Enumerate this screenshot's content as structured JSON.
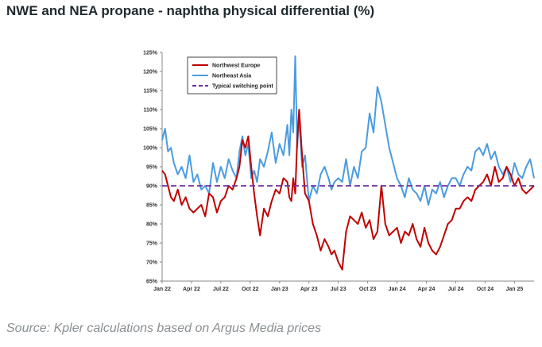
{
  "title": "NWE and NEA propane - naphtha physical differential (%)",
  "source": "Source: Kpler calculations based on Argus Media prices",
  "colors": {
    "nwe": "#c00000",
    "nea": "#4a9be0",
    "threshold": "#7030a0",
    "axis": "#888888",
    "text": "#1f2a2e"
  },
  "chart_data": {
    "type": "line",
    "title": "NWE and NEA propane - naphtha physical differential (%)",
    "xlabel": "",
    "ylabel": "%",
    "ylim": [
      65,
      125
    ],
    "yticks": [
      65,
      70,
      75,
      80,
      85,
      90,
      95,
      100,
      105,
      110,
      115,
      120,
      125
    ],
    "ytick_labels": [
      "65%",
      "70%",
      "75%",
      "80%",
      "85%",
      "90%",
      "95%",
      "100%",
      "105%",
      "110%",
      "115%",
      "120%",
      "125%"
    ],
    "x_range_months": [
      0,
      38
    ],
    "xticks": [
      0,
      3,
      6,
      9,
      12,
      15,
      18,
      21,
      24,
      27,
      30,
      33,
      36
    ],
    "xtick_labels": [
      "Jan 22",
      "Apr 22",
      "Jul 22",
      "Oct 22",
      "Jan 23",
      "Apr 23",
      "Jul 23",
      "Oct 23",
      "Jan 24",
      "Apr 24",
      "Jul 24",
      "Oct 24",
      "Jan 25"
    ],
    "x_unit": "months since Jan 2022",
    "legend_position": "top-left",
    "legend": [
      "Northwest Europe",
      "Northeast Asia",
      "Typical switching point"
    ],
    "threshold": {
      "name": "Typical switching point",
      "value": 90
    },
    "series": [
      {
        "name": "Northwest Europe",
        "x": [
          0,
          0.3,
          0.6,
          0.9,
          1.2,
          1.6,
          2.0,
          2.4,
          2.8,
          3.2,
          3.6,
          4.0,
          4.4,
          4.8,
          5.2,
          5.6,
          6.0,
          6.4,
          6.8,
          7.2,
          7.6,
          7.9,
          8.2,
          8.5,
          8.8,
          9.1,
          9.4,
          9.7,
          10.0,
          10.4,
          10.8,
          11.2,
          11.6,
          12.0,
          12.4,
          12.8,
          13.0,
          13.2,
          13.4,
          13.6,
          13.8,
          14.0,
          14.3,
          14.6,
          15.0,
          15.4,
          15.8,
          16.2,
          16.6,
          17.0,
          17.3,
          17.6,
          18.0,
          18.4,
          18.8,
          19.2,
          19.6,
          20.0,
          20.4,
          20.8,
          21.2,
          21.6,
          22.0,
          22.4,
          22.8,
          23.2,
          23.6,
          24.0,
          24.4,
          24.8,
          25.2,
          25.6,
          26.0,
          26.4,
          26.8,
          27.2,
          27.6,
          28.0,
          28.4,
          28.8,
          29.2,
          29.6,
          30.0,
          30.4,
          30.8,
          31.2,
          31.6,
          32.0,
          32.4,
          32.8,
          33.2,
          33.6,
          34.0,
          34.4,
          34.8,
          35.2,
          35.6,
          36.0,
          36.4,
          36.8,
          37.2,
          37.6,
          38.0
        ],
        "values": [
          94,
          93,
          90,
          87,
          86,
          89,
          85,
          87,
          84,
          83,
          84,
          85,
          82,
          88,
          87,
          83,
          86,
          87,
          90,
          89,
          92,
          95,
          102,
          100,
          103,
          95,
          88,
          82,
          77,
          84,
          82,
          86,
          89,
          88,
          92,
          91,
          87,
          86,
          92,
          88,
          102,
          110,
          98,
          88,
          86,
          80,
          77,
          73,
          76,
          74,
          72,
          73,
          70,
          68,
          78,
          82,
          81,
          80,
          83,
          79,
          81,
          76,
          78,
          90,
          80,
          77,
          78,
          79,
          75,
          78,
          77,
          80,
          76,
          74,
          79,
          75,
          73,
          72,
          74,
          77,
          80,
          81,
          84,
          84,
          86,
          87,
          86,
          89,
          90,
          91,
          93,
          90,
          95,
          91,
          92,
          95,
          93,
          90,
          92,
          89,
          88,
          89,
          90
        ]
      },
      {
        "name": "Northeast Asia",
        "x": [
          0,
          0.3,
          0.6,
          0.9,
          1.2,
          1.6,
          2.0,
          2.4,
          2.8,
          3.2,
          3.6,
          4.0,
          4.4,
          4.8,
          5.2,
          5.6,
          6.0,
          6.4,
          6.8,
          7.2,
          7.6,
          7.9,
          8.2,
          8.5,
          8.8,
          9.1,
          9.4,
          9.7,
          10.0,
          10.4,
          10.8,
          11.2,
          11.6,
          12.0,
          12.4,
          12.8,
          13.0,
          13.2,
          13.4,
          13.6,
          13.8,
          14.0,
          14.3,
          14.6,
          15.0,
          15.4,
          15.8,
          16.2,
          16.6,
          17.0,
          17.3,
          17.6,
          18.0,
          18.4,
          18.8,
          19.2,
          19.6,
          20.0,
          20.4,
          20.8,
          21.2,
          21.6,
          22.0,
          22.4,
          22.8,
          23.2,
          23.6,
          24.0,
          24.4,
          24.8,
          25.2,
          25.6,
          26.0,
          26.4,
          26.8,
          27.2,
          27.6,
          28.0,
          28.4,
          28.8,
          29.2,
          29.6,
          30.0,
          30.4,
          30.8,
          31.2,
          31.6,
          32.0,
          32.4,
          32.8,
          33.2,
          33.6,
          34.0,
          34.4,
          34.8,
          35.2,
          35.6,
          36.0,
          36.4,
          36.8,
          37.2,
          37.6,
          38.0
        ],
        "values": [
          102,
          105,
          99,
          100,
          96,
          93,
          95,
          92,
          98,
          91,
          93,
          89,
          90,
          88,
          96,
          91,
          95,
          92,
          97,
          94,
          92,
          99,
          103,
          98,
          101,
          92,
          94,
          91,
          97,
          95,
          99,
          104,
          96,
          101,
          98,
          106,
          98,
          110,
          104,
          124,
          100,
          108,
          95,
          98,
          86,
          90,
          88,
          93,
          95,
          92,
          89,
          91,
          92,
          91,
          97,
          90,
          95,
          92,
          99,
          100,
          109,
          104,
          116,
          112,
          106,
          100,
          96,
          92,
          90,
          87,
          92,
          89,
          88,
          86,
          90,
          85,
          89,
          88,
          91,
          87,
          90,
          92,
          92,
          90,
          93,
          95,
          94,
          99,
          100,
          98,
          101,
          97,
          99,
          95,
          93,
          95,
          91,
          96,
          93,
          92,
          95,
          97,
          92
        ]
      }
    ]
  }
}
